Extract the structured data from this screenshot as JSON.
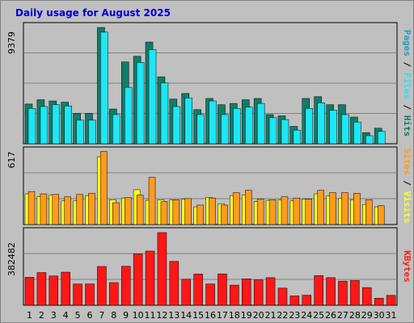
{
  "title": "Daily usage for August 2025",
  "colors": {
    "hits": "#117d66",
    "files": "#1de6f5",
    "pages": "#1a9bcc",
    "visits": "#ffff22",
    "sites": "#ff9a1c",
    "kbytes": "#ff1717",
    "weekend_day": "#117d66",
    "weekday": "#000000",
    "title": "#0000cc"
  },
  "chart_data": [
    {
      "type": "bar",
      "name": "hits-files-pages",
      "axis_max_label": "9379",
      "ylim": [
        0,
        9379
      ],
      "categories": [
        "1",
        "2",
        "3",
        "4",
        "5",
        "6",
        "7",
        "8",
        "9",
        "10",
        "11",
        "12",
        "13",
        "14",
        "15",
        "16",
        "17",
        "18",
        "19",
        "20",
        "21",
        "22",
        "23",
        "24",
        "25",
        "26",
        "27",
        "28",
        "29",
        "30",
        "31"
      ],
      "series": [
        {
          "name": "Hits",
          "values": [
            3200,
            3550,
            3450,
            3350,
            2450,
            2450,
            9379,
            2800,
            6600,
            7050,
            8200,
            5400,
            3600,
            4050,
            2750,
            3650,
            3150,
            3250,
            3550,
            3650,
            2350,
            2250,
            1400,
            3650,
            3800,
            3150,
            3150,
            2150,
            900,
            1250,
            0
          ]
        },
        {
          "name": "Files",
          "values": [
            2850,
            3000,
            3150,
            3050,
            1900,
            1900,
            9000,
            2350,
            4550,
            6550,
            7600,
            4900,
            3000,
            3700,
            2350,
            3450,
            2350,
            2850,
            2950,
            3250,
            2100,
            1950,
            1100,
            2850,
            3300,
            2700,
            2350,
            1750,
            650,
            1000,
            0
          ]
        },
        {
          "name": "Pages",
          "values": [
            0,
            0,
            0,
            0,
            0,
            0,
            0,
            0,
            0,
            0,
            0,
            0,
            0,
            0,
            0,
            0,
            0,
            0,
            0,
            0,
            0,
            0,
            0,
            0,
            0,
            0,
            0,
            0,
            0,
            0,
            0
          ]
        }
      ],
      "legend": [
        "Pages",
        "Files",
        "Hits"
      ],
      "grid": true
    },
    {
      "type": "bar",
      "name": "visits-sites",
      "axis_max_label": "617",
      "ylim": [
        0,
        617
      ],
      "categories": [
        "1",
        "2",
        "3",
        "4",
        "5",
        "6",
        "7",
        "8",
        "9",
        "10",
        "11",
        "12",
        "13",
        "14",
        "15",
        "16",
        "17",
        "18",
        "19",
        "20",
        "21",
        "22",
        "23",
        "24",
        "25",
        "26",
        "27",
        "28",
        "29",
        "30",
        "31"
      ],
      "series": [
        {
          "name": "Visits",
          "values": [
            260,
            235,
            250,
            200,
            200,
            245,
            575,
            210,
            225,
            295,
            205,
            210,
            210,
            215,
            150,
            230,
            175,
            245,
            250,
            195,
            205,
            210,
            200,
            215,
            260,
            245,
            220,
            210,
            170,
            150,
            0
          ]
        },
        {
          "name": "Sites",
          "values": [
            280,
            260,
            255,
            235,
            255,
            265,
            620,
            185,
            230,
            250,
            400,
            195,
            210,
            220,
            165,
            225,
            165,
            270,
            290,
            215,
            210,
            235,
            225,
            215,
            290,
            270,
            270,
            265,
            210,
            160,
            0
          ]
        }
      ],
      "legend": [
        "Sites",
        "Visits"
      ],
      "grid": true
    },
    {
      "type": "bar",
      "name": "kbytes",
      "axis_max_label": "382482",
      "ylim": [
        0,
        382482
      ],
      "categories": [
        "1",
        "2",
        "3",
        "4",
        "5",
        "6",
        "7",
        "8",
        "9",
        "10",
        "11",
        "12",
        "13",
        "14",
        "15",
        "16",
        "17",
        "18",
        "19",
        "20",
        "21",
        "22",
        "23",
        "24",
        "25",
        "26",
        "27",
        "28",
        "29",
        "30",
        "31"
      ],
      "series": [
        {
          "name": "KBytes",
          "values": [
            147000,
            172000,
            154000,
            174000,
            112000,
            112000,
            204000,
            119000,
            205000,
            270000,
            285000,
            382482,
            231000,
            137000,
            164000,
            112000,
            165000,
            106000,
            139000,
            133000,
            145000,
            90000,
            49000,
            53000,
            156000,
            145000,
            127000,
            130000,
            93000,
            37000,
            52000
          ]
        }
      ],
      "legend": [
        "KBytes"
      ],
      "grid": true
    }
  ],
  "weekend_days": [
    "3",
    "9",
    "10",
    "16",
    "17",
    "23",
    "24",
    "30",
    "31"
  ]
}
